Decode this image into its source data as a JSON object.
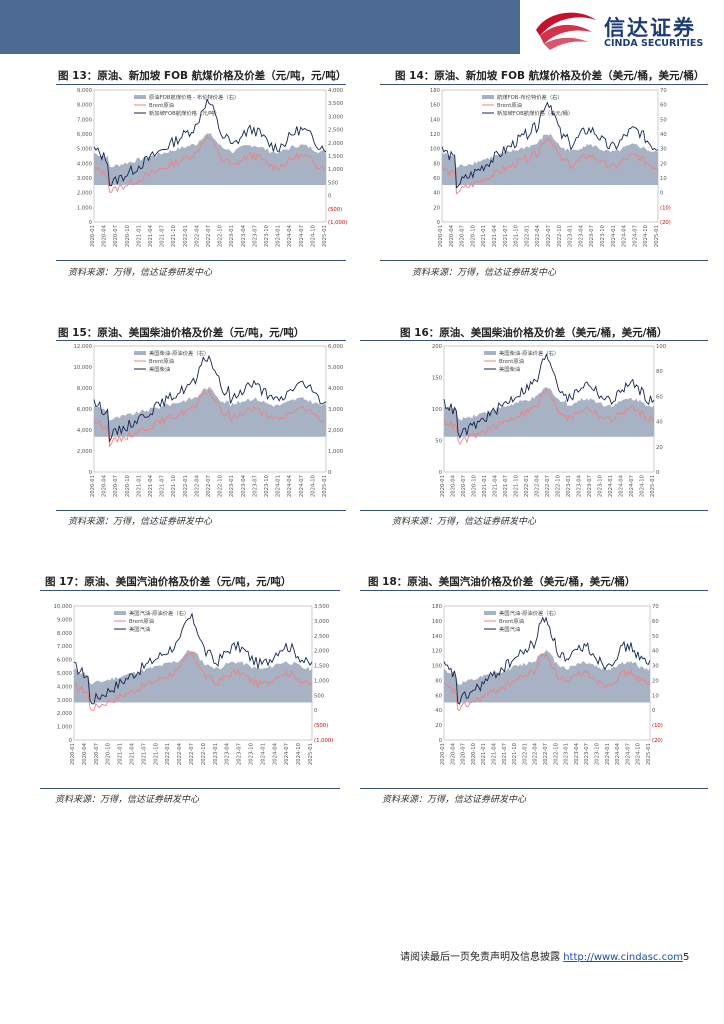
{
  "header": {
    "logo_cn": "信达证券",
    "logo_en": "CINDA SECURITIES"
  },
  "source_text": "资料来源：万得，信达证券研发中心",
  "footer": {
    "text": "请阅读最后一页免责声明及信息披露 ",
    "link": "http://www.cindasc.com",
    "page": "5"
  },
  "colors": {
    "band": "#4d6a93",
    "area": "#a7b2c4",
    "spread_line": "#f08080",
    "price_line": "#16264e"
  },
  "figures": [
    {
      "title": "图 13：原油、新加坡 FOB 航煤价格及价差（元/吨，元/吨）",
      "legend": [
        "原油FOB航煤价格 - 布伦特价差（右）",
        "Brent原油",
        "新加坡FOB航煤价格（元/吨）"
      ],
      "left_ticks": [
        "9,000",
        "8,000",
        "7,000",
        "6,000",
        "5,000",
        "4,000",
        "3,000",
        "2,000",
        "1,000",
        "0"
      ],
      "right_ticks": [
        "4,000",
        "3,500",
        "3,000",
        "2,500",
        "2,000",
        "1,500",
        "1,000",
        "500",
        "0",
        "(500)",
        "(1,000)"
      ],
      "x_ticks": [
        "2020-01",
        "2020-04",
        "2020-07",
        "2020-10",
        "2021-01",
        "2021-04",
        "2021-07",
        "2021-10",
        "2022-01",
        "2022-04",
        "2022-07",
        "2022-10",
        "2023-01",
        "2023-04",
        "2023-07",
        "2023-10",
        "2024-01",
        "2024-04",
        "2024-07",
        "2024-10",
        "2025-01"
      ]
    },
    {
      "title": "图 14：原油、新加坡 FOB 航煤价格及价差（美元/桶，美元/桶）",
      "legend": [
        "航煤FOB-布伦特价差（右）",
        "Brent原油",
        "新加坡FOB航煤价格（美元/桶）"
      ],
      "left_ticks": [
        "180",
        "160",
        "140",
        "120",
        "100",
        "80",
        "60",
        "40",
        "20",
        "0"
      ],
      "right_ticks": [
        "70",
        "60",
        "50",
        "40",
        "30",
        "20",
        "10",
        "0",
        "(10)",
        "(20)"
      ],
      "x_ticks": [
        "2020-01",
        "2020-04",
        "2020-07",
        "2020-10",
        "2021-01",
        "2021-04",
        "2021-07",
        "2021-10",
        "2022-01",
        "2022-04",
        "2022-07",
        "2022-10",
        "2023-01",
        "2023-04",
        "2023-07",
        "2023-10",
        "2024-01",
        "2024-04",
        "2024-07",
        "2024-10",
        "2025-01"
      ]
    },
    {
      "title": "图 15：原油、美国柴油价格及价差（元/吨，元/吨）",
      "legend": [
        "美国柴油-原油价差（右）",
        "Brent原油",
        "美国柴油"
      ],
      "left_ticks": [
        "12,000",
        "10,000",
        "8,000",
        "6,000",
        "4,000",
        "2,000",
        "0"
      ],
      "right_ticks": [
        "6,000",
        "5,000",
        "4,000",
        "3,000",
        "2,000",
        "1,000",
        "0"
      ],
      "x_ticks": [
        "2020-01",
        "2020-04",
        "2020-07",
        "2020-10",
        "2021-01",
        "2021-04",
        "2021-07",
        "2021-10",
        "2022-01",
        "2022-04",
        "2022-07",
        "2022-10",
        "2023-01",
        "2023-04",
        "2023-07",
        "2023-10",
        "2024-01",
        "2024-04",
        "2024-07",
        "2024-10",
        "2025-01"
      ]
    },
    {
      "title": "图 16：原油、美国柴油价格及价差（美元/桶，美元/桶）",
      "legend": [
        "美国柴油-原油价差（右）",
        "Brent原油",
        "美国柴油"
      ],
      "left_ticks": [
        "200",
        "150",
        "100",
        "50",
        "0"
      ],
      "right_ticks": [
        "100",
        "80",
        "60",
        "40",
        "20",
        "0"
      ],
      "x_ticks": [
        "2020-01",
        "2020-04",
        "2020-07",
        "2020-10",
        "2021-01",
        "2021-04",
        "2021-07",
        "2021-10",
        "2022-01",
        "2022-04",
        "2022-07",
        "2022-10",
        "2023-01",
        "2023-04",
        "2023-07",
        "2023-10",
        "2024-01",
        "2024-04",
        "2024-07",
        "2024-10",
        "2025-01"
      ]
    },
    {
      "title": "图 17：原油、美国汽油价格及价差（元/吨，元/吨）",
      "legend": [
        "美国汽油-原油价差（右）",
        "Brent原油",
        "美国汽油"
      ],
      "left_ticks": [
        "10,000",
        "9,000",
        "8,000",
        "7,000",
        "6,000",
        "5,000",
        "4,000",
        "3,000",
        "2,000",
        "1,000",
        "0"
      ],
      "right_ticks": [
        "3,500",
        "3,000",
        "2,500",
        "2,000",
        "1,500",
        "1,000",
        "500",
        "0",
        "(500)",
        "(1,000)"
      ],
      "x_ticks": [
        "2020-01",
        "2020-04",
        "2020-07",
        "2020-10",
        "2021-01",
        "2021-04",
        "2021-07",
        "2021-10",
        "2022-01",
        "2022-04",
        "2022-07",
        "2022-10",
        "2023-01",
        "2023-04",
        "2023-07",
        "2023-10",
        "2024-01",
        "2024-04",
        "2024-07",
        "2024-10",
        "2025-01"
      ]
    },
    {
      "title": "图 18：原油、美国汽油价格及价差（美元/桶，美元/桶）",
      "legend": [
        "美国汽油-原油价差（右）",
        "Brent原油",
        "美国汽油"
      ],
      "left_ticks": [
        "180",
        "160",
        "140",
        "120",
        "100",
        "80",
        "60",
        "40",
        "20",
        "0"
      ],
      "right_ticks": [
        "70",
        "60",
        "50",
        "40",
        "30",
        "20",
        "10",
        "0",
        "(10)",
        "(20)"
      ],
      "x_ticks": [
        "2020-01",
        "2020-04",
        "2020-07",
        "2020-10",
        "2021-01",
        "2021-04",
        "2021-07",
        "2021-10",
        "2022-01",
        "2022-04",
        "2022-07",
        "2022-10",
        "2023-01",
        "2023-04",
        "2023-07",
        "2023-10",
        "2024-01",
        "2024-04",
        "2024-07",
        "2024-10",
        "2025-01"
      ]
    }
  ]
}
